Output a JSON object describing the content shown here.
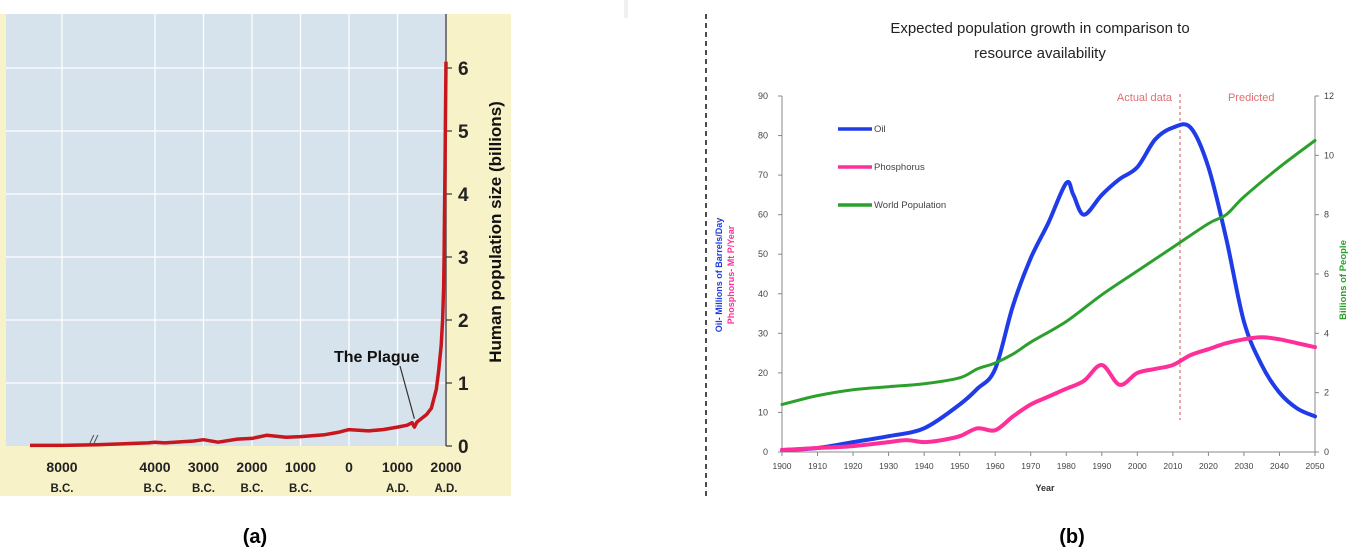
{
  "panels": {
    "a_label": "(a)",
    "b_label": "(b)"
  },
  "colors": {
    "panel_a_plot_bg": "#d7e3ec",
    "panel_a_axis_bg": "#f7f2c8",
    "panel_a_line": "#c8161d",
    "oil": "#1f3ce8",
    "phosphorus": "#ff2f9a",
    "population": "#2ca02c",
    "divider": "#e07070"
  },
  "chart_data": [
    {
      "type": "line",
      "ylabel": "Human population size (billions)",
      "yticks": [
        "0",
        "1",
        "2",
        "3",
        "4",
        "5",
        "6"
      ],
      "ylim": [
        0,
        6.3
      ],
      "xticks": [
        {
          "year": "8000",
          "era": "B.C."
        },
        {
          "year": "4000",
          "era": "B.C."
        },
        {
          "year": "3000",
          "era": "B.C."
        },
        {
          "year": "2000",
          "era": "B.C."
        },
        {
          "year": "1000",
          "era": "B.C."
        },
        {
          "year": "0",
          "era": ""
        },
        {
          "year": "1000",
          "era": "A.D."
        },
        {
          "year": "2000",
          "era": "A.D."
        }
      ],
      "grid": true,
      "axis_break": "//",
      "annotation": {
        "text": "The Plague",
        "x": 1348,
        "y": 0.37
      },
      "series": [
        {
          "x": [
            -9000,
            -8000,
            -6500,
            -4300,
            -4000,
            -3800,
            -3200,
            -3000,
            -2700,
            -2300,
            -2000,
            -1700,
            -1300,
            -1000,
            -500,
            -200,
            0,
            400,
            700,
            1000,
            1200,
            1300,
            1348,
            1400,
            1600,
            1700,
            1800,
            1850,
            1900,
            1930,
            1950,
            1960,
            1970,
            1980,
            1990,
            2000
          ],
          "y": [
            0.01,
            0.01,
            0.02,
            0.05,
            0.06,
            0.05,
            0.08,
            0.1,
            0.06,
            0.11,
            0.12,
            0.17,
            0.14,
            0.15,
            0.18,
            0.22,
            0.26,
            0.24,
            0.26,
            0.3,
            0.33,
            0.37,
            0.3,
            0.38,
            0.5,
            0.6,
            0.9,
            1.2,
            1.6,
            2.0,
            2.5,
            3.0,
            3.7,
            4.4,
            5.3,
            6.1
          ]
        }
      ]
    },
    {
      "type": "line",
      "title": "Expected population growth in comparison to resource availability",
      "xlabel": "Year",
      "ylabel_left_oil": "Oil- Millions of Barrels/Day",
      "ylabel_left_phos": "Phosphorus- Mt P/Year",
      "ylabel_right": "Billions of People",
      "xlim": [
        1900,
        2050
      ],
      "ylim_left": [
        0,
        90
      ],
      "ylim_right": [
        0,
        12
      ],
      "xticks": [
        "1900",
        "1910",
        "1920",
        "1930",
        "1940",
        "1950",
        "1960",
        "1970",
        "1980",
        "1990",
        "2000",
        "2010",
        "2020",
        "2030",
        "2040",
        "2050"
      ],
      "yticks_left": [
        "0",
        "10",
        "20",
        "30",
        "40",
        "50",
        "60",
        "70",
        "80",
        "90"
      ],
      "yticks_right": [
        "0",
        "2",
        "4",
        "6",
        "8",
        "10",
        "12"
      ],
      "divider_x": 2012,
      "region_labels": [
        "Actual data",
        "Predicted"
      ],
      "legend_position": "top-left",
      "series": [
        {
          "name": "Oil",
          "axis": "left",
          "x": [
            1900,
            1910,
            1920,
            1930,
            1940,
            1950,
            1955,
            1960,
            1965,
            1970,
            1975,
            1980,
            1982,
            1985,
            1990,
            1995,
            2000,
            2005,
            2010,
            2015,
            2020,
            2025,
            2030,
            2035,
            2040,
            2045,
            2050
          ],
          "y": [
            0.5,
            1,
            2.5,
            4,
            6,
            12,
            16,
            21,
            37,
            49,
            58,
            68,
            65,
            60,
            65,
            69,
            72,
            79,
            82,
            82,
            72,
            54,
            33,
            22,
            15,
            11,
            9
          ]
        },
        {
          "name": "Phosphorus",
          "axis": "left",
          "x": [
            1900,
            1910,
            1920,
            1930,
            1935,
            1940,
            1945,
            1950,
            1955,
            1960,
            1965,
            1970,
            1975,
            1980,
            1985,
            1990,
            1995,
            2000,
            2005,
            2010,
            2015,
            2020,
            2025,
            2030,
            2035,
            2040,
            2045,
            2050
          ],
          "y": [
            0.5,
            1,
            1.5,
            2.5,
            3,
            2.5,
            3,
            4,
            6,
            5.5,
            9,
            12,
            14,
            16,
            18,
            22,
            17,
            20,
            21,
            22,
            24.5,
            26,
            27.5,
            28.5,
            29,
            28.5,
            27.5,
            26.5
          ]
        },
        {
          "name": "World Population",
          "axis": "right",
          "x": [
            1900,
            1910,
            1920,
            1930,
            1940,
            1950,
            1955,
            1960,
            1965,
            1970,
            1980,
            1990,
            2000,
            2010,
            2020,
            2025,
            2030,
            2040,
            2050
          ],
          "y": [
            1.6,
            1.9,
            2.1,
            2.2,
            2.3,
            2.5,
            2.8,
            3.0,
            3.3,
            3.7,
            4.4,
            5.3,
            6.1,
            6.9,
            7.7,
            8.0,
            8.6,
            9.6,
            10.5
          ]
        }
      ]
    }
  ]
}
